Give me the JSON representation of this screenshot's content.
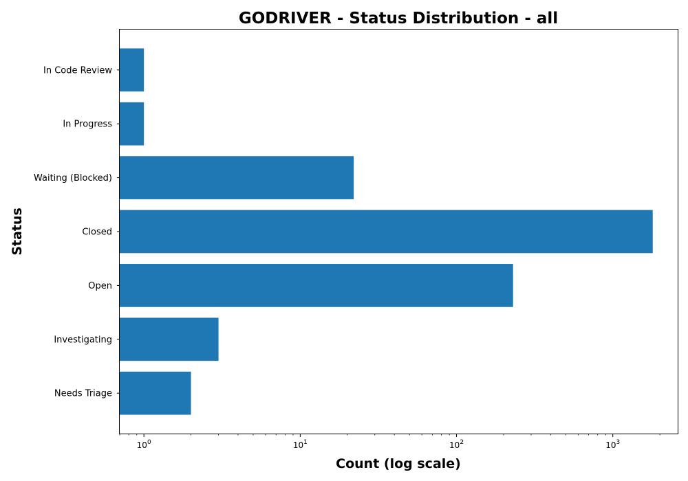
{
  "chart_data": {
    "type": "bar",
    "orientation": "horizontal",
    "title": "GODRIVER - Status Distribution - all",
    "xlabel": "Count (log scale)",
    "ylabel": "Status",
    "x_scale": "log",
    "xlim": [
      0.7,
      2600
    ],
    "x_ticks": [
      {
        "value": 1,
        "base": "10",
        "exp": "0"
      },
      {
        "value": 10,
        "base": "10",
        "exp": "1"
      },
      {
        "value": 100,
        "base": "10",
        "exp": "2"
      },
      {
        "value": 1000,
        "base": "10",
        "exp": "3"
      }
    ],
    "categories": [
      "Needs Triage",
      "Investigating",
      "Open",
      "Closed",
      "Waiting (Blocked)",
      "In Progress",
      "In Code Review"
    ],
    "values": [
      2,
      3,
      230,
      1800,
      22,
      1,
      1
    ],
    "bar_color": "#1f77b4",
    "grid": false,
    "legend": "none"
  }
}
